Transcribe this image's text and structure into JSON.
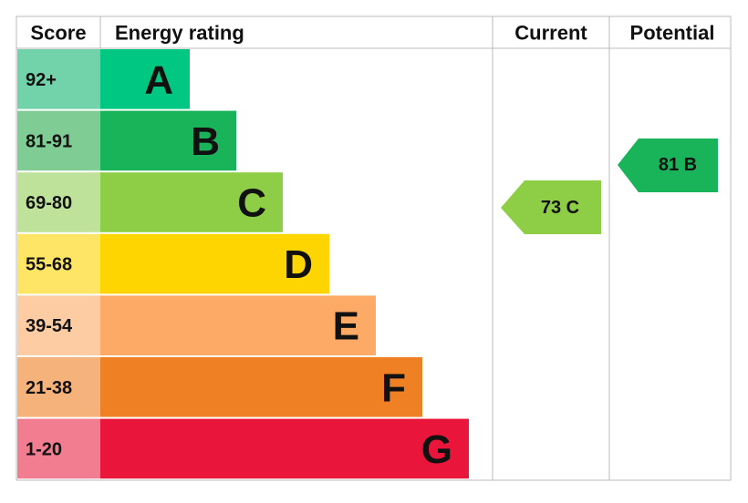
{
  "header": {
    "score": "Score",
    "rating": "Energy rating",
    "current": "Current",
    "potential": "Potential"
  },
  "bands": [
    {
      "score": "92+",
      "letter": "A",
      "color": "#00c781",
      "tint": "#72d3ab"
    },
    {
      "score": "81-91",
      "letter": "B",
      "color": "#19b459",
      "tint": "#7fcc94"
    },
    {
      "score": "69-80",
      "letter": "C",
      "color": "#8dce46",
      "tint": "#bfe29a"
    },
    {
      "score": "55-68",
      "letter": "D",
      "color": "#ffd500",
      "tint": "#ffe566"
    },
    {
      "score": "39-54",
      "letter": "E",
      "color": "#fcaa65",
      "tint": "#fdcca3"
    },
    {
      "score": "21-38",
      "letter": "F",
      "color": "#ef8023",
      "tint": "#f5b27a"
    },
    {
      "score": "1-20",
      "letter": "G",
      "color": "#e9153b",
      "tint": "#f27c90"
    }
  ],
  "current": {
    "label": "73 C",
    "color": "#8dce46"
  },
  "potential": {
    "label": "81 B",
    "color": "#19b459"
  }
}
